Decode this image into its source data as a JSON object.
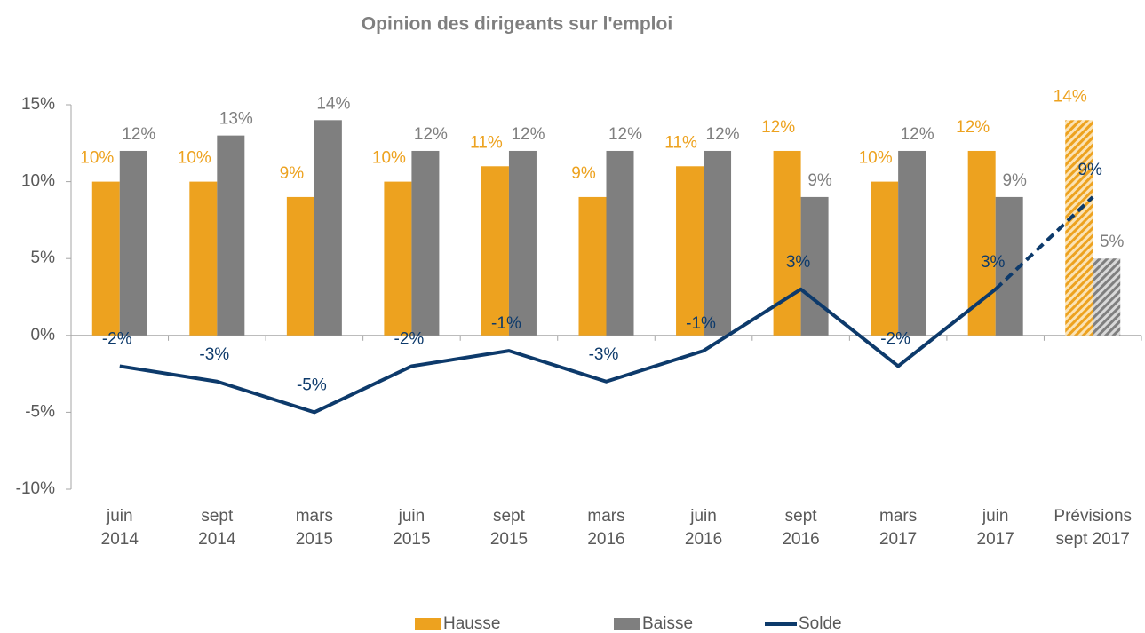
{
  "chart_data": {
    "type": "bar_line",
    "title": "Opinion des dirigeants sur l'emploi",
    "categories": [
      [
        "juin",
        "2014"
      ],
      [
        "sept",
        "2014"
      ],
      [
        "mars",
        "2015"
      ],
      [
        "juin",
        "2015"
      ],
      [
        "sept",
        "2015"
      ],
      [
        "mars",
        "2016"
      ],
      [
        "juin",
        "2016"
      ],
      [
        "sept",
        "2016"
      ],
      [
        "mars",
        "2017"
      ],
      [
        "juin",
        "2017"
      ],
      [
        "Prévisions",
        "sept 2017"
      ]
    ],
    "series": [
      {
        "name": "Hausse",
        "type": "bar",
        "color": "#eda21f",
        "label_color": "#eda21f",
        "values": [
          10,
          10,
          9,
          10,
          11,
          9,
          11,
          12,
          10,
          12,
          14
        ],
        "value_labels": [
          "10%",
          "10%",
          "9%",
          "10%",
          "11%",
          "9%",
          "11%",
          "12%",
          "10%",
          "12%",
          "14%"
        ]
      },
      {
        "name": "Baisse",
        "type": "bar",
        "color": "#7f7f7f",
        "label_color": "#7f7f7f",
        "values": [
          12,
          13,
          14,
          12,
          12,
          12,
          12,
          9,
          12,
          9,
          5
        ],
        "value_labels": [
          "12%",
          "13%",
          "14%",
          "12%",
          "12%",
          "12%",
          "12%",
          "9%",
          "12%",
          "9%",
          "5%"
        ]
      },
      {
        "name": "Solde",
        "type": "line",
        "color": "#0d3a6b",
        "label_color": "#0d3a6b",
        "values": [
          -2,
          -3,
          -5,
          -2,
          -1,
          -3,
          -1,
          3,
          -2,
          3,
          9
        ],
        "value_labels": [
          "-2%",
          "-3%",
          "-5%",
          "-2%",
          "-1%",
          "-3%",
          "-1%",
          "3%",
          "-2%",
          "3%",
          "9%"
        ]
      }
    ],
    "forecast_index": 10,
    "ylim": [
      -10,
      15
    ],
    "yticks": [
      {
        "value": -10,
        "label": "-10%"
      },
      {
        "value": -5,
        "label": "-5%"
      },
      {
        "value": 0,
        "label": "0%"
      },
      {
        "value": 5,
        "label": "5%"
      },
      {
        "value": 10,
        "label": "10%"
      },
      {
        "value": 15,
        "label": "15%"
      }
    ],
    "legend": "bottom"
  }
}
